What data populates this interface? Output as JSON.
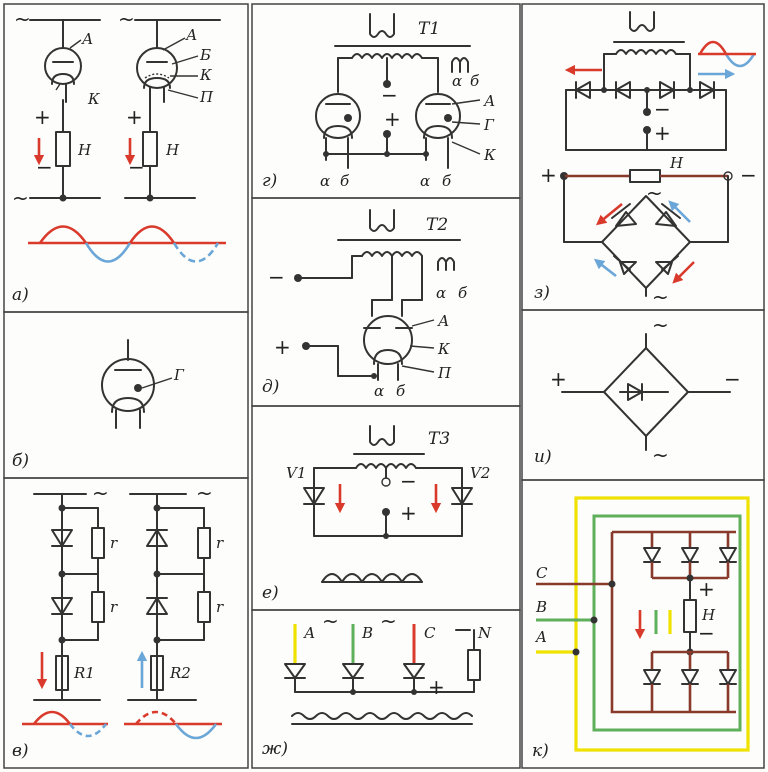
{
  "panels": {
    "a": {
      "label": "а)",
      "anode": "А",
      "cathode": "К",
      "grid_b": "Б",
      "k2": "К",
      "p": "П",
      "load": "Н",
      "plus": "+",
      "minus": "−",
      "ac": "~"
    },
    "b": {
      "label": "б)",
      "g": "Г"
    },
    "v": {
      "label": "в)",
      "r": "r",
      "r1": "R1",
      "r2": "R2",
      "ac": "~"
    },
    "g": {
      "label": "г)",
      "t1": "Т1",
      "alpha": "α",
      "beta": "б",
      "anode": "А",
      "grid": "Г",
      "cathode": "К",
      "plus": "+",
      "minus": "−"
    },
    "d": {
      "label": "д)",
      "t2": "Т2",
      "alpha": "α",
      "beta": "б",
      "anode": "А",
      "cathode": "К",
      "p": "П",
      "plus": "+",
      "minus": "−"
    },
    "e": {
      "label": "е)",
      "t3": "Т3",
      "v1": "V1",
      "v2": "V2",
      "plus": "+",
      "minus": "−"
    },
    "zh": {
      "label": "ж)",
      "a": "А",
      "b": "В",
      "c": "С",
      "n": "N",
      "plus": "+",
      "ac": "~"
    },
    "z": {
      "label": "з)",
      "load": "Н",
      "plus": "+",
      "minus": "−",
      "ac": "~"
    },
    "i": {
      "label": "и)",
      "plus": "+",
      "minus": "−",
      "ac": "~"
    },
    "k": {
      "label": "к)",
      "c": "C",
      "b": "B",
      "a": "A",
      "load": "Н",
      "plus": "+",
      "minus": "−"
    }
  },
  "colors": {
    "red": "#d93a2b",
    "blue": "#6aa6d8",
    "brown": "#8a3a2a",
    "green": "#5fb05a",
    "yellow": "#f0e200"
  }
}
